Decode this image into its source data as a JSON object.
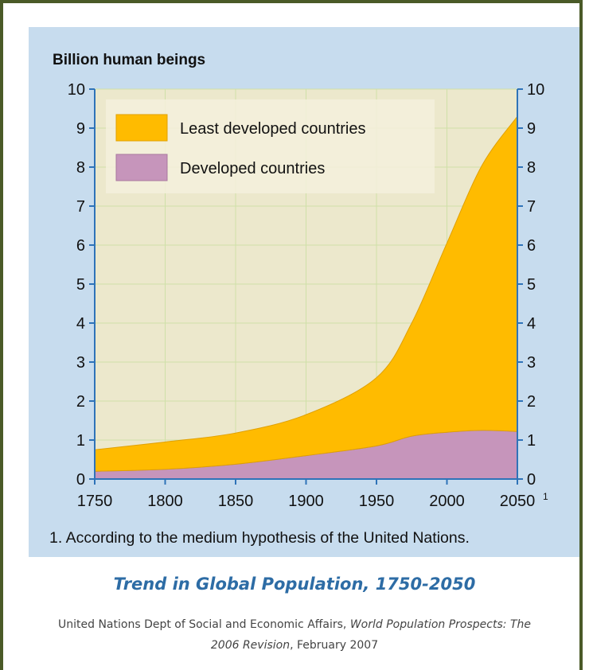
{
  "chart_data": {
    "type": "area",
    "stacked": true,
    "title": "Billion human beings",
    "x": [
      1750,
      1800,
      1850,
      1900,
      1950,
      1975,
      2000,
      2025,
      2050
    ],
    "x_ticks": [
      1750,
      1800,
      1850,
      1900,
      1950,
      2000,
      2050
    ],
    "x_tick_label_last": "2050",
    "x_tick_footnote": "1",
    "y_ticks": [
      0,
      1,
      2,
      3,
      4,
      5,
      6,
      7,
      8,
      9,
      10
    ],
    "ylim": [
      0,
      10
    ],
    "xlim": [
      1750,
      2050
    ],
    "grid": true,
    "legend_placement": "top-left",
    "series": [
      {
        "name": "Developed countries",
        "values": [
          0.2,
          0.25,
          0.38,
          0.6,
          0.85,
          1.1,
          1.2,
          1.25,
          1.22
        ],
        "color": "#c695bb"
      },
      {
        "name": "Least developed countries",
        "values": [
          0.55,
          0.7,
          0.8,
          1.05,
          1.75,
          2.9,
          4.85,
          6.8,
          8.08
        ],
        "color": "#ffbb00"
      }
    ],
    "footnote": "1. According to the medium hypothesis of the United Nations."
  },
  "caption": {
    "title": "Trend in Global Population, 1750-2050",
    "source_prefix": "United Nations Dept of Social and Economic Affairs, ",
    "source_italic": "World Population Prospects: The 2006 Revision",
    "source_suffix": ", February 2007"
  },
  "colors": {
    "frame": "#4a5a28",
    "panel": "#c7dcee",
    "plot_bg": "#ece8cc",
    "grid": "#cfe0a8",
    "axis": "#2f73b8",
    "caption": "#2d6ca5"
  }
}
